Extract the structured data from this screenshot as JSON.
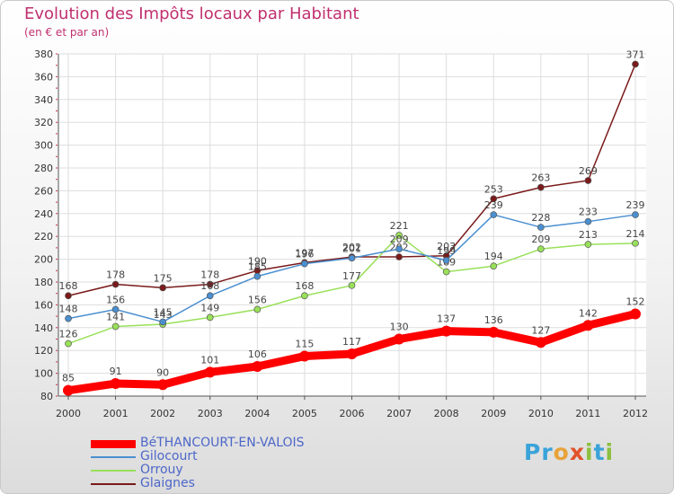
{
  "header": {
    "title": "Evolution des Impôts locaux par Habitant",
    "subtitle": "(en € et par an)"
  },
  "logo": {
    "text": "Proxiti",
    "letters": [
      {
        "char": "P",
        "color": "#3aa3d9"
      },
      {
        "char": "r",
        "color": "#3aa3d9"
      },
      {
        "char": "o",
        "color": "#e8a23a"
      },
      {
        "char": "x",
        "color": "#e2532b"
      },
      {
        "char": "i",
        "color": "#8cbf3f"
      },
      {
        "char": "t",
        "color": "#3aa3d9"
      },
      {
        "char": "i",
        "color": "#8cbf3f"
      }
    ]
  },
  "chart_data": {
    "type": "line",
    "title": "Evolution des Impôts locaux par Habitant",
    "subtitle": "(en € et par an)",
    "xlabel": "",
    "ylabel": "",
    "x": [
      "2000",
      "2001",
      "2002",
      "2003",
      "2004",
      "2005",
      "2006",
      "2007",
      "2008",
      "2009",
      "2010",
      "2011",
      "2012"
    ],
    "ylim": [
      80,
      380
    ],
    "yticks": [
      80,
      100,
      120,
      140,
      160,
      180,
      200,
      220,
      240,
      260,
      280,
      300,
      320,
      340,
      360,
      380
    ],
    "grid": true,
    "legend_position": "bottom-left",
    "series": [
      {
        "name": "BéTHANCOURT-EN-VALOIS",
        "color": "#ff0000",
        "values": [
          85,
          91,
          90,
          101,
          106,
          115,
          117,
          130,
          137,
          136,
          127,
          142,
          152
        ]
      },
      {
        "name": "Gilocourt",
        "color": "#4a8fd0",
        "values": [
          148,
          156,
          145,
          168,
          185,
          196,
          201,
          209,
          199,
          239,
          228,
          233,
          239
        ]
      },
      {
        "name": "Orrouy",
        "color": "#99e05a",
        "values": [
          126,
          141,
          143,
          149,
          156,
          168,
          177,
          221,
          189,
          194,
          209,
          213,
          214
        ]
      },
      {
        "name": "Glaignes",
        "color": "#7a1a1a",
        "values": [
          168,
          178,
          175,
          178,
          190,
          197,
          202,
          202,
          203,
          253,
          263,
          269,
          371
        ]
      }
    ]
  }
}
